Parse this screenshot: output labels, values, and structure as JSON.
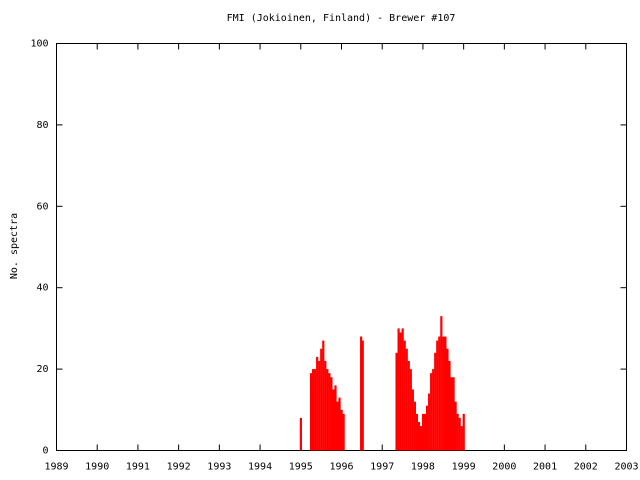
{
  "chart_data": {
    "type": "bar",
    "title": "FMI (Jokioinen, Finland) - Brewer #107",
    "ylabel": "No. spectra",
    "color": "#ff0000",
    "x": [
      1995.0,
      1995.25,
      1995.3,
      1995.35,
      1995.4,
      1995.45,
      1995.5,
      1995.55,
      1995.6,
      1995.65,
      1995.7,
      1995.75,
      1995.8,
      1995.85,
      1995.9,
      1995.95,
      1996,
      1996.05,
      1996.48,
      1996.52,
      1997.35,
      1997.4,
      1997.45,
      1997.5,
      1997.55,
      1997.6,
      1997.65,
      1997.7,
      1997.75,
      1997.8,
      1997.85,
      1997.9,
      1997.95,
      1998,
      1998.05,
      1998.1,
      1998.15,
      1998.2,
      1998.25,
      1998.3,
      1998.35,
      1998.4,
      1998.45,
      1998.5,
      1998.55,
      1998.6,
      1998.65,
      1998.7,
      1998.75,
      1998.8,
      1998.85,
      1998.9,
      1998.95,
      1999
    ],
    "values": [
      8,
      19,
      20,
      20,
      23,
      22,
      25,
      27,
      22,
      20,
      19,
      18,
      15,
      16,
      12,
      13,
      10,
      9,
      28,
      27,
      24,
      30,
      29,
      30,
      27,
      25,
      22,
      20,
      15,
      12,
      9,
      7,
      6,
      9,
      9,
      11,
      14,
      19,
      20,
      24,
      27,
      28,
      33,
      28,
      28,
      25,
      22,
      18,
      18,
      12,
      9,
      8,
      6,
      9
    ],
    "xlim": [
      1989,
      2003
    ],
    "xticks": [
      1989,
      1990,
      1991,
      1992,
      1993,
      1994,
      1995,
      1996,
      1997,
      1998,
      1999,
      2000,
      2001,
      2002,
      2003
    ],
    "ylim": [
      0,
      100
    ],
    "yticks": [
      0,
      20,
      40,
      60,
      80,
      100
    ]
  }
}
